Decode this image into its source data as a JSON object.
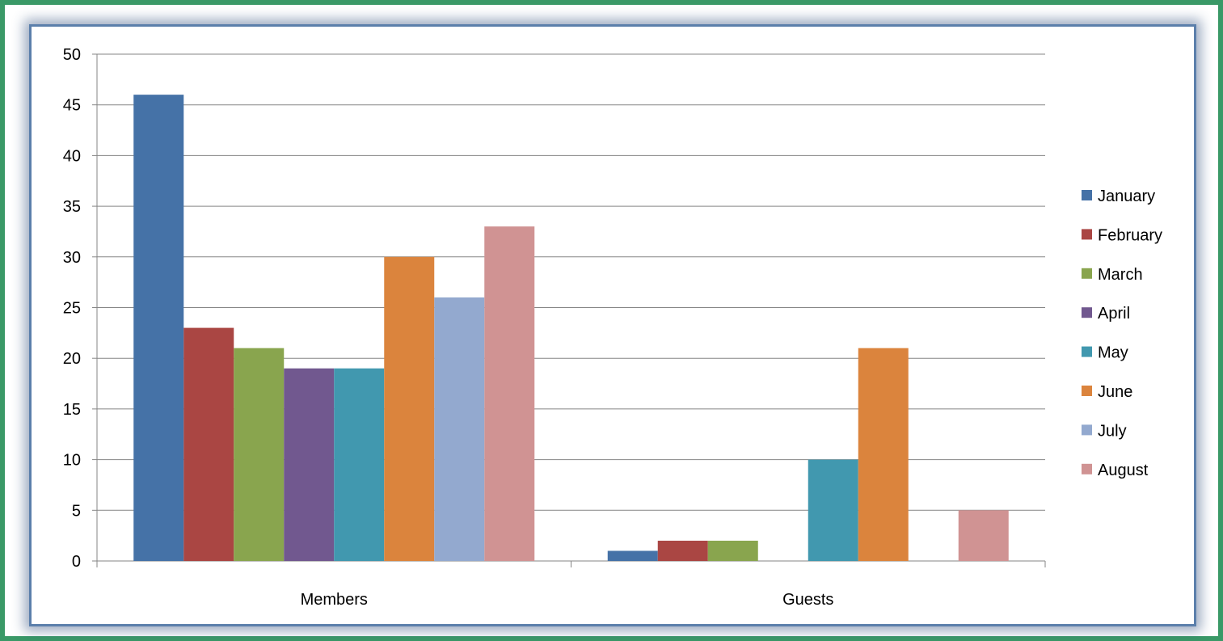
{
  "chart_data": {
    "type": "bar",
    "categories": [
      "Members",
      "Guests"
    ],
    "series": [
      {
        "name": "January",
        "values": [
          46,
          1
        ],
        "color": "#4572a7"
      },
      {
        "name": "February",
        "values": [
          23,
          2
        ],
        "color": "#aa4643"
      },
      {
        "name": "March",
        "values": [
          21,
          2
        ],
        "color": "#89a54e"
      },
      {
        "name": "April",
        "values": [
          19,
          0
        ],
        "color": "#71588f"
      },
      {
        "name": "May",
        "values": [
          19,
          10
        ],
        "color": "#4198af"
      },
      {
        "name": "June",
        "values": [
          30,
          21
        ],
        "color": "#db843d"
      },
      {
        "name": "July",
        "values": [
          26,
          0
        ],
        "color": "#93a9cf"
      },
      {
        "name": "August",
        "values": [
          33,
          5
        ],
        "color": "#d09393"
      }
    ],
    "yticks": [
      "0",
      "5",
      "10",
      "15",
      "20",
      "25",
      "30",
      "35",
      "40",
      "45",
      "50"
    ],
    "ylim": [
      0,
      50
    ],
    "grid": true,
    "legend_position": "right"
  },
  "colors": {
    "frame": "#3a9967",
    "chart_border": "#5b7fab",
    "gridline": "#868686"
  }
}
